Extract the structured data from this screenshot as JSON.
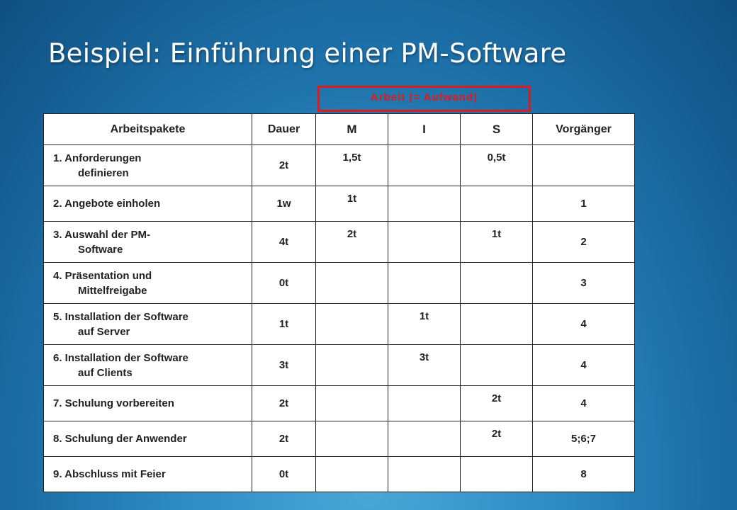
{
  "title": "Beispiel: Einführung einer PM-Software",
  "note": "Arbeit (= Aufwand)",
  "headers": {
    "arbeitspakete": "Arbeitspakete",
    "dauer": "Dauer",
    "m": "M",
    "i": "I",
    "s": "S",
    "vorgaenger": "Vorgänger"
  },
  "rows": [
    {
      "name1": "1. Anforderungen",
      "name2": "definieren",
      "dauer": "2t",
      "m": "1,5t",
      "i": "",
      "s": "0,5t",
      "vor": ""
    },
    {
      "name1": "2. Angebote einholen",
      "name2": "",
      "dauer": "1w",
      "m": "1t",
      "i": "",
      "s": "",
      "vor": "1"
    },
    {
      "name1": "3. Auswahl der PM-",
      "name2": "Software",
      "dauer": "4t",
      "m": "2t",
      "i": "",
      "s": "1t",
      "vor": "2"
    },
    {
      "name1": "4. Präsentation und",
      "name2": "Mittelfreigabe",
      "dauer": "0t",
      "m": "",
      "i": "",
      "s": "",
      "vor": "3"
    },
    {
      "name1": "5. Installation der Software",
      "name2": "auf Server",
      "dauer": "1t",
      "m": "",
      "i": "1t",
      "s": "",
      "vor": "4"
    },
    {
      "name1": "6. Installation der Software",
      "name2": "auf Clients",
      "dauer": "3t",
      "m": "",
      "i": "3t",
      "s": "",
      "vor": "4"
    },
    {
      "name1": "7. Schulung vorbereiten",
      "name2": "",
      "dauer": "2t",
      "m": "",
      "i": "",
      "s": "2t",
      "vor": "4"
    },
    {
      "name1": "8. Schulung der Anwender",
      "name2": "",
      "dauer": "2t",
      "m": "",
      "i": "",
      "s": "2t",
      "vor": "5;6;7"
    },
    {
      "name1": "9. Abschluss mit Feier",
      "name2": "",
      "dauer": "0t",
      "m": "",
      "i": "",
      "s": "",
      "vor": "8"
    }
  ]
}
